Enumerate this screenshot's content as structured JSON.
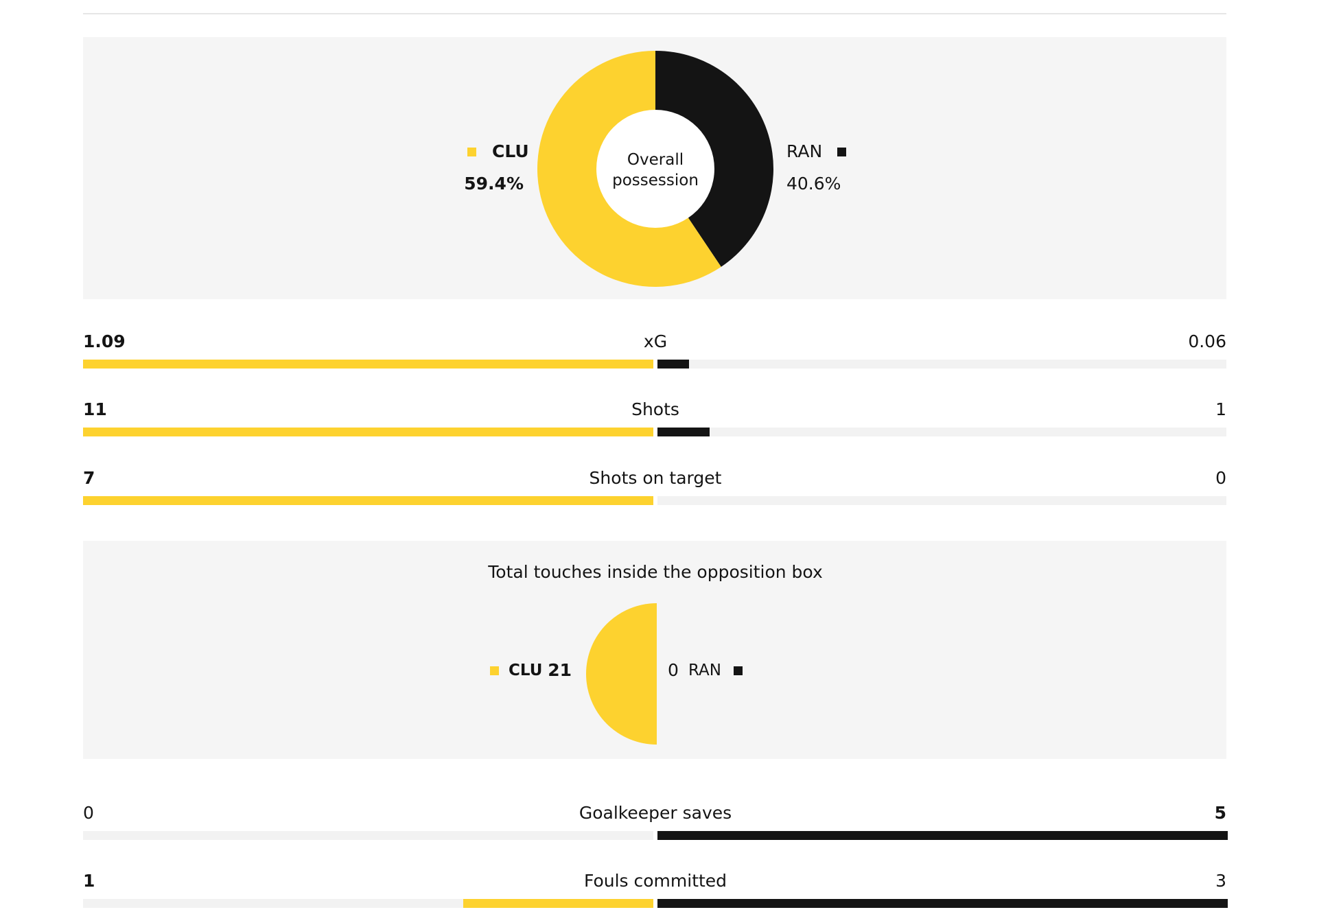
{
  "colors": {
    "home": "#fdd22f",
    "away": "#141414",
    "track": "#f2f2f2",
    "panel": "#f5f5f5"
  },
  "teams": {
    "home": "CLU",
    "away": "RAN"
  },
  "chart_data": [
    {
      "type": "pie",
      "title": "Overall possession",
      "center_label_line1": "Overall",
      "center_label_line2": "possession",
      "slices": [
        {
          "name": "CLU",
          "value": 59.4,
          "label": "59.4%"
        },
        {
          "name": "RAN",
          "value": 40.6,
          "label": "40.6%"
        }
      ]
    },
    {
      "type": "bar",
      "title": "Match stats",
      "series": [
        {
          "name": "CLU"
        },
        {
          "name": "RAN"
        }
      ],
      "rows": [
        {
          "label": "xG",
          "home": 1.09,
          "away": 0.06,
          "home_text": "1.09",
          "away_text": "0.06",
          "home_bold": true,
          "away_bold": false
        },
        {
          "label": "Shots",
          "home": 11,
          "away": 1,
          "home_text": "11",
          "away_text": "1",
          "home_bold": true,
          "away_bold": false
        },
        {
          "label": "Shots on target",
          "home": 7,
          "away": 0,
          "home_text": "7",
          "away_text": "0",
          "home_bold": true,
          "away_bold": false
        }
      ]
    },
    {
      "type": "pie",
      "title": "Total touches inside the opposition box",
      "slices": [
        {
          "name": "CLU",
          "value": 21,
          "label": "21"
        },
        {
          "name": "RAN",
          "value": 0,
          "label": "0"
        }
      ]
    },
    {
      "type": "bar",
      "title": "Match stats",
      "series": [
        {
          "name": "CLU"
        },
        {
          "name": "RAN"
        }
      ],
      "rows": [
        {
          "label": "Goalkeeper saves",
          "home": 0,
          "away": 5,
          "home_text": "0",
          "away_text": "5",
          "home_bold": false,
          "away_bold": true
        },
        {
          "label": "Fouls committed",
          "home": 1,
          "away": 3,
          "home_text": "1",
          "away_text": "3",
          "home_bold": true,
          "away_bold": false
        }
      ]
    }
  ]
}
